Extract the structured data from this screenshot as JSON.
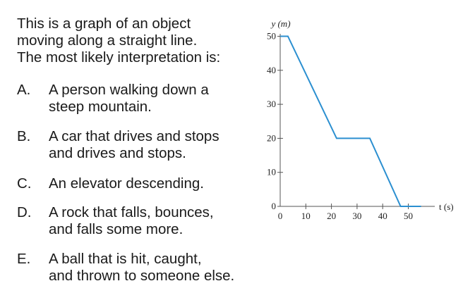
{
  "question": {
    "prompt_lines": [
      "This is a graph of an object",
      "moving along a straight line.",
      "The most likely interpretation is:"
    ],
    "choices": [
      {
        "letter": "A.",
        "lines": [
          "A person walking down a",
          "steep mountain."
        ]
      },
      {
        "letter": "B.",
        "lines": [
          "A car that drives and stops",
          "and drives and stops."
        ]
      },
      {
        "letter": "C.",
        "lines": [
          "An elevator descending."
        ]
      },
      {
        "letter": "D.",
        "lines": [
          "A rock that falls, bounces,",
          "and falls some more."
        ]
      },
      {
        "letter": "E.",
        "lines": [
          "A ball that is hit, caught,",
          "and thrown to someone else."
        ]
      }
    ]
  },
  "chart_data": {
    "type": "line",
    "xlabel": "t (s)",
    "ylabel": "y (m)",
    "xlim": [
      0,
      55
    ],
    "ylim": [
      0,
      52
    ],
    "x_ticks": [
      0,
      10,
      20,
      30,
      40,
      50
    ],
    "y_ticks": [
      0,
      10,
      20,
      30,
      40,
      50
    ],
    "grid": false,
    "line_color": "#2b8fd0",
    "series": [
      {
        "x": [
          0,
          3,
          22,
          35,
          47,
          55
        ],
        "y": [
          50,
          50,
          20,
          20,
          0,
          0
        ]
      }
    ]
  }
}
